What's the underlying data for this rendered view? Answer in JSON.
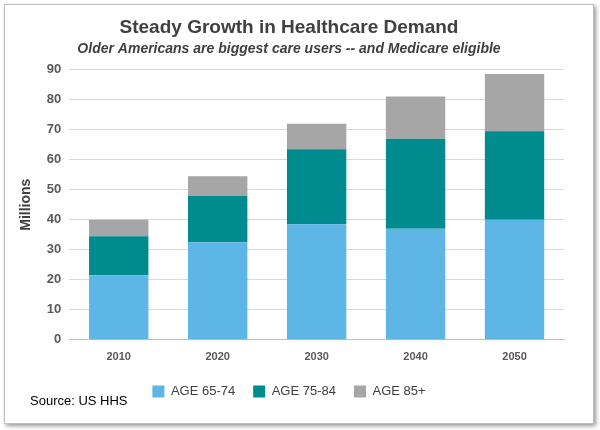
{
  "chart_data": {
    "type": "bar",
    "title": "Steady Growth in Healthcare Demand",
    "subtitle": "Older Americans are biggest care users -- and Medicare eligible",
    "y_label": "Millions",
    "annotations": [
      "Source: US HHS"
    ],
    "categories": [
      "2010",
      "2020",
      "2030",
      "2040",
      "2050"
    ],
    "series": [
      {
        "name": "AGE 65-74",
        "color": "#5eb6e6",
        "values": [
          21.5,
          32.5,
          38.5,
          37,
          40
        ]
      },
      {
        "name": "AGE 75-84",
        "color": "#008b8e",
        "values": [
          13,
          15.5,
          25,
          30,
          29.5
        ]
      },
      {
        "name": "AGE 85+",
        "color": "#a6a6a6",
        "values": [
          5.5,
          6.5,
          8.5,
          14,
          19
        ]
      }
    ],
    "ylim": [
      0,
      90
    ],
    "yticks": [
      0,
      10,
      20,
      30,
      40,
      50,
      60,
      70,
      80,
      90
    ],
    "stacked": true,
    "grid": true,
    "legend": "bottom"
  }
}
